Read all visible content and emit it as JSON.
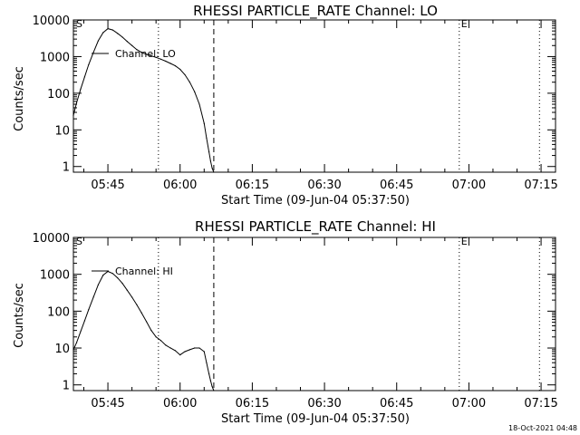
{
  "footer": {
    "timestamp": "18-Oct-2021 04:48"
  },
  "chart_data": [
    {
      "type": "line",
      "title": "RHESSI PARTICLE_RATE Channel: LO",
      "xlabel": "Start Time (09-Jun-04 05:37:50)",
      "ylabel": "Counts/sec",
      "yscale": "log",
      "ylim": [
        0.7,
        10000
      ],
      "xlim": [
        "05:37:50",
        "07:18:00"
      ],
      "ytick_labels": [
        "1",
        "10",
        "100",
        "1000",
        "10000"
      ],
      "yticks": [
        1,
        10,
        100,
        1000,
        10000
      ],
      "xtick_labels": [
        "05:45",
        "06:00",
        "06:15",
        "06:30",
        "06:45",
        "07:00",
        "07:15"
      ],
      "start_marker": "S",
      "end_marker": "E",
      "dotted_lines": [
        "05:55:30",
        "06:58:00",
        "07:14:40"
      ],
      "dashed_line": "06:07:00",
      "series": [
        {
          "name": "Channel: LO",
          "x": [
            "05:37:50",
            "05:38:30",
            "05:39:20",
            "05:40:10",
            "05:41:00",
            "05:42:00",
            "05:43:00",
            "05:44:00",
            "05:45:00",
            "05:46:00",
            "05:47:00",
            "05:48:00",
            "05:49:00",
            "05:50:00",
            "05:51:00",
            "05:52:00",
            "05:53:00",
            "05:54:00",
            "05:55:00",
            "05:56:00",
            "05:57:00",
            "05:58:00",
            "05:59:00",
            "06:00:00",
            "06:01:00",
            "06:02:00",
            "06:03:00",
            "06:04:00",
            "06:05:00",
            "06:05:30",
            "06:06:00",
            "06:06:20",
            "06:06:40",
            "06:07:00"
          ],
          "y": [
            25,
            55,
            130,
            280,
            600,
            1300,
            2700,
            4500,
            5800,
            5300,
            4300,
            3400,
            2600,
            2000,
            1550,
            1300,
            1150,
            1050,
            950,
            850,
            750,
            650,
            560,
            450,
            320,
            200,
            110,
            50,
            15,
            6,
            2.5,
            1.4,
            0.9,
            0.7
          ]
        }
      ]
    },
    {
      "type": "line",
      "title": "RHESSI PARTICLE_RATE Channel: HI",
      "xlabel": "Start Time (09-Jun-04 05:37:50)",
      "ylabel": "Counts/sec",
      "yscale": "log",
      "ylim": [
        0.7,
        10000
      ],
      "xlim": [
        "05:37:50",
        "07:18:00"
      ],
      "ytick_labels": [
        "1",
        "10",
        "100",
        "1000",
        "10000"
      ],
      "yticks": [
        1,
        10,
        100,
        1000,
        10000
      ],
      "xtick_labels": [
        "05:45",
        "06:00",
        "06:15",
        "06:30",
        "06:45",
        "07:00",
        "07:15"
      ],
      "start_marker": "S",
      "end_marker": "E",
      "dotted_lines": [
        "05:55:30",
        "06:58:00",
        "07:14:40"
      ],
      "dashed_line": "06:07:00",
      "series": [
        {
          "name": "Channel: HI",
          "x": [
            "05:37:50",
            "05:38:30",
            "05:39:20",
            "05:40:10",
            "05:41:00",
            "05:42:00",
            "05:43:00",
            "05:44:00",
            "05:45:00",
            "05:46:00",
            "05:47:00",
            "05:48:00",
            "05:49:00",
            "05:50:00",
            "05:51:00",
            "05:52:00",
            "05:53:00",
            "05:54:00",
            "05:55:00",
            "05:56:00",
            "05:57:00",
            "05:58:00",
            "05:59:00",
            "06:00:00",
            "06:01:00",
            "06:02:00",
            "06:03:00",
            "06:04:00",
            "06:05:00",
            "06:05:30",
            "06:06:00",
            "06:06:20",
            "06:06:40",
            "06:07:00"
          ],
          "y": [
            9,
            14,
            28,
            55,
            110,
            240,
            520,
            950,
            1200,
            1050,
            800,
            570,
            370,
            240,
            150,
            90,
            52,
            30,
            20,
            16,
            12,
            10,
            8.5,
            6.5,
            8,
            9,
            10,
            10,
            8,
            4,
            2,
            1.3,
            0.9,
            0.7
          ]
        }
      ]
    }
  ]
}
